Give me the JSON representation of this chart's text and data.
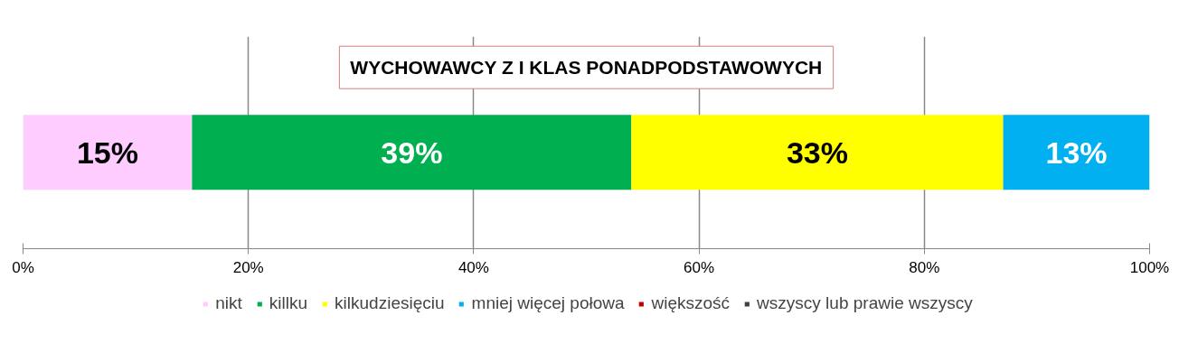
{
  "chart_data": {
    "type": "bar",
    "orientation": "horizontal",
    "stacked": true,
    "title": "WYCHOWAWCY Z I KLAS PONADPODSTAWOWYCH",
    "categories": [
      null
    ],
    "series": [
      {
        "name": "nikt",
        "color": "#ffccff",
        "values": [
          15
        ],
        "value_labels": [
          "15%"
        ]
      },
      {
        "name": "killku",
        "color": "#00b050",
        "values": [
          39
        ],
        "value_labels": [
          "39%"
        ]
      },
      {
        "name": "kilkudziesięciu",
        "color": "#ffff00",
        "values": [
          33
        ],
        "value_labels": [
          "33%"
        ]
      },
      {
        "name": "mniej więcej połowa",
        "color": "#00b0f0",
        "values": [
          13
        ],
        "value_labels": [
          "13%"
        ]
      },
      {
        "name": "większość",
        "color": "#c00000",
        "values": [
          0
        ],
        "value_labels": [
          null
        ]
      },
      {
        "name": "wszyscy lub prawie wszyscy",
        "color": "#404040",
        "values": [
          0
        ],
        "value_labels": [
          null
        ]
      }
    ],
    "xlim": [
      0,
      100
    ],
    "xticks": [
      {
        "value": 0,
        "label": "0%"
      },
      {
        "value": 20,
        "label": "20%"
      },
      {
        "value": 40,
        "label": "40%"
      },
      {
        "value": 60,
        "label": "60%"
      },
      {
        "value": 80,
        "label": "80%"
      },
      {
        "value": 100,
        "label": "100%"
      }
    ],
    "grid": "x",
    "legend": "bottom"
  }
}
